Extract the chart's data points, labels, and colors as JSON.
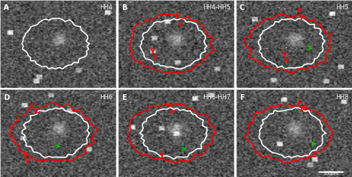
{
  "panels": [
    {
      "label": "A",
      "stage": "HH4"
    },
    {
      "label": "B",
      "stage": "HH4-HH5"
    },
    {
      "label": "C",
      "stage": "HH5"
    },
    {
      "label": "D",
      "stage": "HH6"
    },
    {
      "label": "E",
      "stage": "HH6-HH7"
    },
    {
      "label": "F",
      "stage": "HH8"
    }
  ],
  "nrows": 2,
  "ncols": 3,
  "background_color": "#ffffff",
  "panel_bg": "#606060",
  "label_color": "white",
  "stage_color": "white",
  "label_fontsize": 7,
  "stage_fontsize": 6,
  "border_color": "white",
  "scale_bar_color": "white",
  "scale_bar_label": "100μm"
}
